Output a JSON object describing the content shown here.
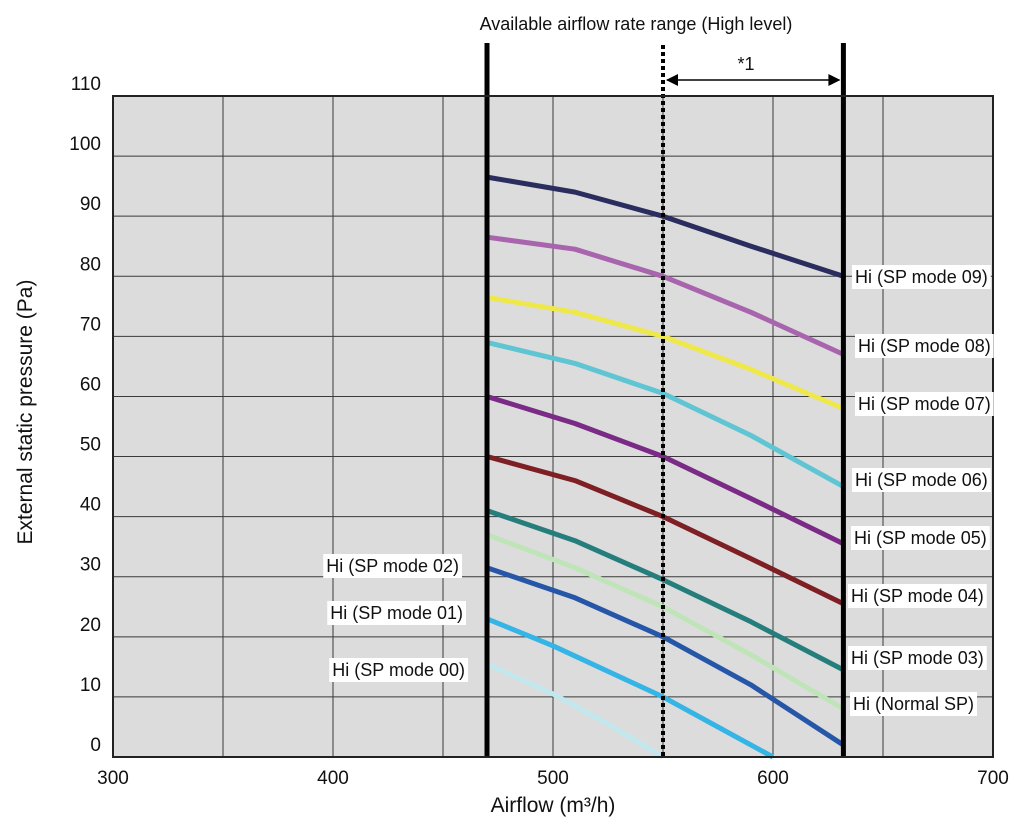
{
  "chart_data": {
    "type": "line",
    "title": "Available airflow rate range (High level)",
    "xlabel": "Airflow (m³/h)",
    "ylabel": "External static pressure (Pa)",
    "xlim": [
      300,
      700
    ],
    "ylim": [
      0,
      110
    ],
    "x_ticks": [
      "300",
      "400",
      "500",
      "600",
      "700"
    ],
    "y_ticks": [
      "0",
      "10",
      "20",
      "30",
      "40",
      "50",
      "60",
      "70",
      "80",
      "90",
      "100",
      "110"
    ],
    "grid": true,
    "range_marker": {
      "from": 470,
      "to": 632,
      "label": "Available airflow rate range (High level)"
    },
    "dotted_marker": {
      "x": 550
    },
    "annotation": "*1",
    "series": [
      {
        "name": "Hi (SP mode 09)",
        "color": "#2b2d5e",
        "points": [
          [
            470,
            96.5
          ],
          [
            510,
            94
          ],
          [
            550,
            90
          ],
          [
            590,
            85
          ],
          [
            632,
            80
          ]
        ]
      },
      {
        "name": "Hi (SP mode 08)",
        "color": "#a865ad",
        "points": [
          [
            470,
            86.5
          ],
          [
            510,
            84.5
          ],
          [
            550,
            80
          ],
          [
            590,
            74
          ],
          [
            632,
            67
          ]
        ]
      },
      {
        "name": "Hi (SP mode 07)",
        "color": "#eee84a",
        "points": [
          [
            470,
            76.5
          ],
          [
            510,
            74
          ],
          [
            550,
            70
          ],
          [
            590,
            64.5
          ],
          [
            632,
            58
          ]
        ]
      },
      {
        "name": "Hi (SP mode 06)",
        "color": "#5fc5d3",
        "points": [
          [
            470,
            69
          ],
          [
            510,
            65.5
          ],
          [
            550,
            60.5
          ],
          [
            590,
            53.5
          ],
          [
            632,
            45
          ]
        ]
      },
      {
        "name": "Hi (SP mode 05)",
        "color": "#7a2b85",
        "points": [
          [
            470,
            60
          ],
          [
            510,
            55.5
          ],
          [
            550,
            50
          ],
          [
            590,
            43
          ],
          [
            632,
            35.5
          ]
        ]
      },
      {
        "name": "Hi (SP mode 04)",
        "color": "#7d1f23",
        "points": [
          [
            470,
            50
          ],
          [
            510,
            46
          ],
          [
            550,
            40
          ],
          [
            590,
            33
          ],
          [
            632,
            25.5
          ]
        ]
      },
      {
        "name": "Hi (SP mode 03)",
        "color": "#257e7c",
        "points": [
          [
            470,
            41
          ],
          [
            510,
            36
          ],
          [
            550,
            29.5
          ],
          [
            590,
            22.5
          ],
          [
            632,
            14.5
          ]
        ]
      },
      {
        "name": "Hi (Normal SP)",
        "color": "#bfe4b8",
        "points": [
          [
            470,
            37
          ],
          [
            510,
            31.5
          ],
          [
            550,
            25
          ],
          [
            590,
            17
          ],
          [
            632,
            8
          ]
        ]
      },
      {
        "name": "Hi (SP mode 02)",
        "color": "#2656a8",
        "points": [
          [
            470,
            31.5
          ],
          [
            510,
            26.5
          ],
          [
            550,
            20
          ],
          [
            590,
            12
          ],
          [
            632,
            2
          ]
        ]
      },
      {
        "name": "Hi (SP mode 01)",
        "color": "#35b4e6",
        "points": [
          [
            470,
            23
          ],
          [
            500,
            18.5
          ],
          [
            550,
            10
          ],
          [
            575,
            5
          ],
          [
            600,
            0
          ]
        ]
      },
      {
        "name": "Hi (SP mode 00)",
        "color": "#c2e8ee",
        "points": [
          [
            470,
            15.5
          ],
          [
            500,
            10.5
          ],
          [
            525,
            5.5
          ],
          [
            550,
            0
          ]
        ]
      }
    ]
  }
}
